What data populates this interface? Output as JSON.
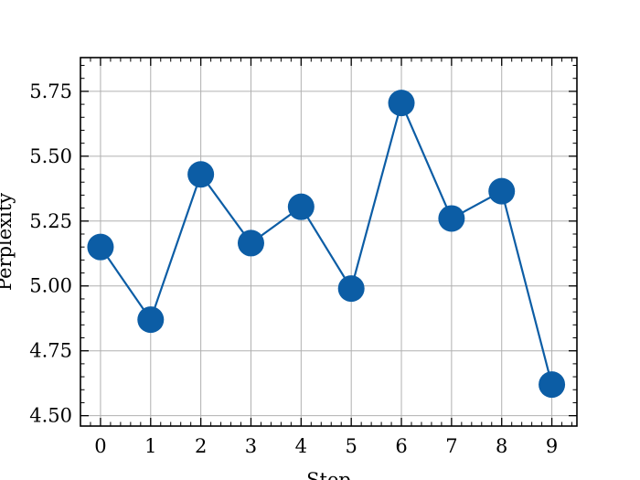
{
  "chart_data": {
    "type": "line",
    "xlabel": "Step",
    "ylabel": "Perplexity",
    "x": [
      0,
      1,
      2,
      3,
      4,
      5,
      6,
      7,
      8,
      9
    ],
    "series": [
      {
        "values": [
          5.15,
          4.87,
          5.43,
          5.165,
          5.305,
          4.99,
          5.705,
          5.26,
          5.365,
          4.62
        ]
      }
    ],
    "xlim": [
      -0.4,
      9.5
    ],
    "ylim": [
      4.46,
      5.88
    ],
    "xticks": [
      0,
      1,
      2,
      3,
      4,
      5,
      6,
      7,
      8,
      9
    ],
    "xtick_labels": [
      "0",
      "1",
      "2",
      "3",
      "4",
      "5",
      "6",
      "7",
      "8",
      "9"
    ],
    "yticks": [
      4.5,
      4.75,
      5.0,
      5.25,
      5.5,
      5.75
    ],
    "ytick_labels": [
      "4.50",
      "4.75",
      "5.00",
      "5.25",
      "5.50",
      "5.75"
    ],
    "grid": true,
    "line_color": "#0c5da5",
    "grid_color": "#b0b0b0"
  }
}
